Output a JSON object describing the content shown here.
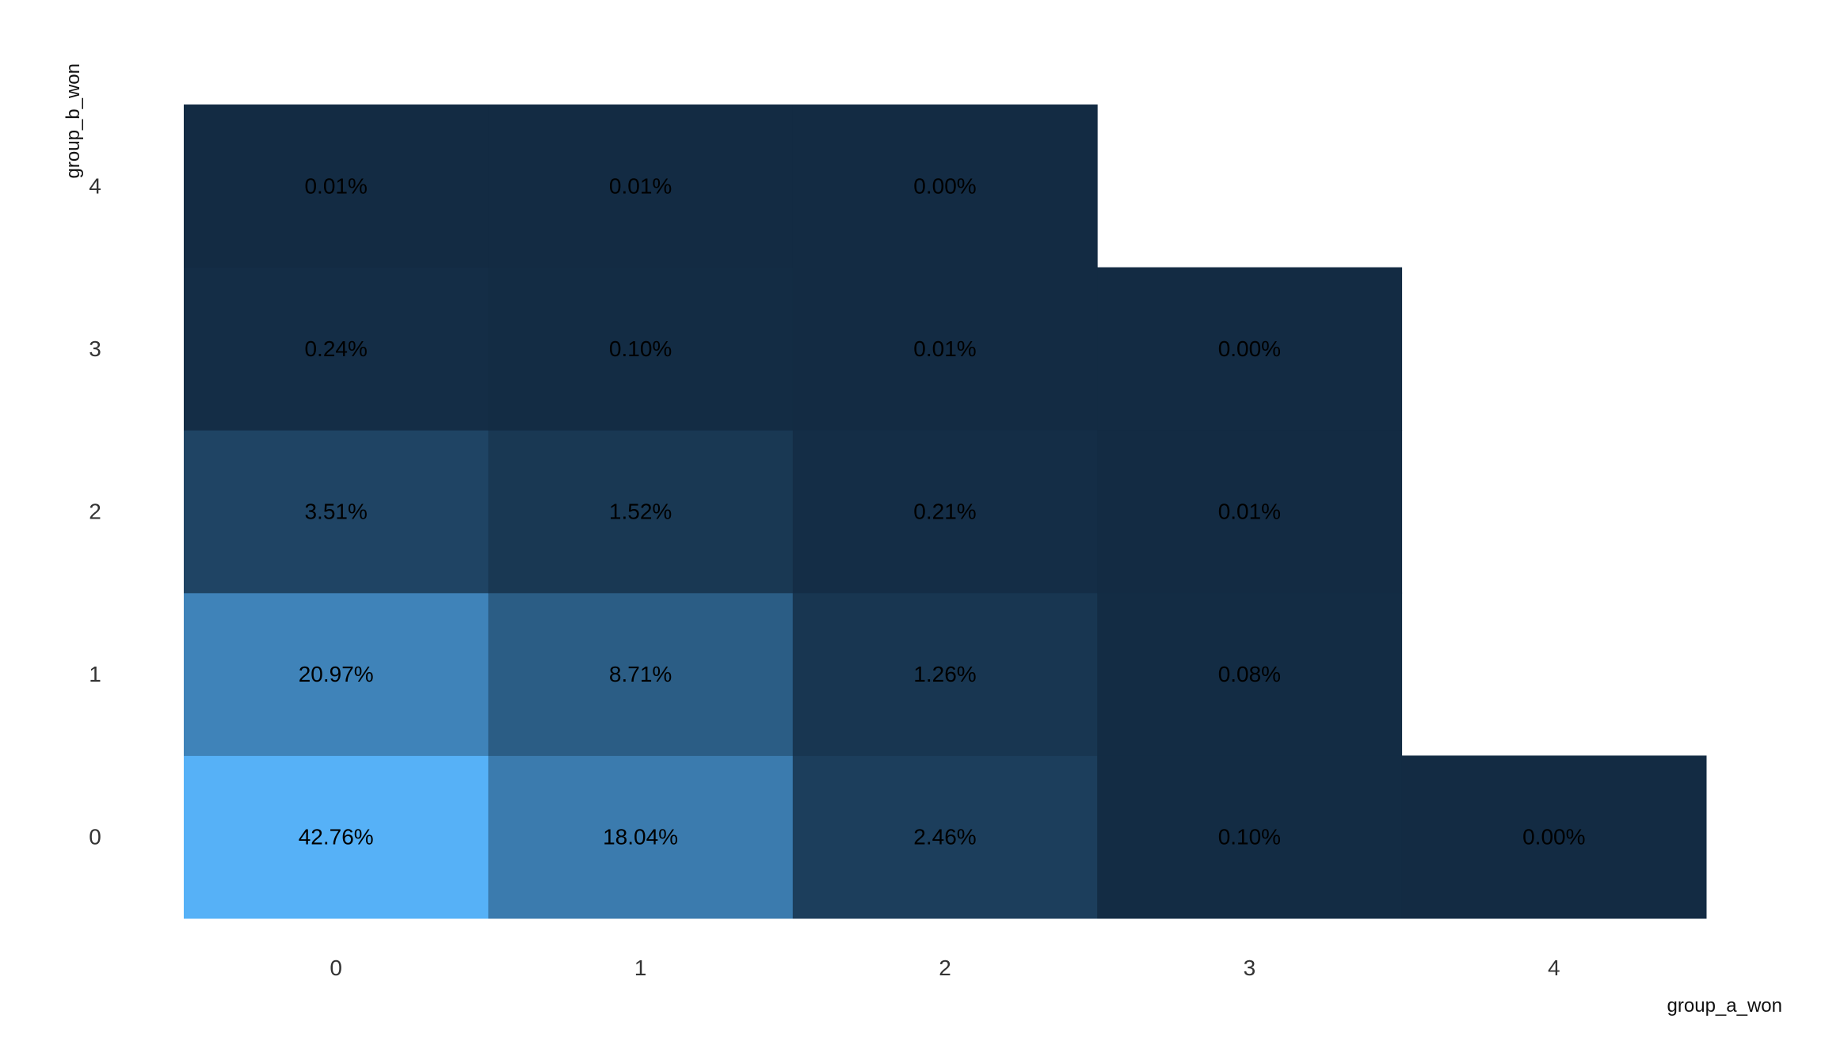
{
  "chart_data": {
    "type": "heatmap",
    "xlabel": "group_a_won",
    "ylabel": "group_b_won",
    "x_categories": [
      "0",
      "1",
      "2",
      "3",
      "4"
    ],
    "y_categories": [
      "0",
      "1",
      "2",
      "3",
      "4"
    ],
    "grid": false,
    "legend": "none",
    "color_scale": {
      "low": "#132B43",
      "high": "#56B1F7"
    },
    "cells": [
      {
        "x": "0",
        "y": "0",
        "value": 42.76,
        "label": "42.76%"
      },
      {
        "x": "1",
        "y": "0",
        "value": 18.04,
        "label": "18.04%"
      },
      {
        "x": "2",
        "y": "0",
        "value": 2.46,
        "label": "2.46%"
      },
      {
        "x": "3",
        "y": "0",
        "value": 0.1,
        "label": "0.10%"
      },
      {
        "x": "4",
        "y": "0",
        "value": 0.0,
        "label": "0.00%"
      },
      {
        "x": "0",
        "y": "1",
        "value": 20.97,
        "label": "20.97%"
      },
      {
        "x": "1",
        "y": "1",
        "value": 8.71,
        "label": "8.71%"
      },
      {
        "x": "2",
        "y": "1",
        "value": 1.26,
        "label": "1.26%"
      },
      {
        "x": "3",
        "y": "1",
        "value": 0.08,
        "label": "0.08%"
      },
      {
        "x": "0",
        "y": "2",
        "value": 3.51,
        "label": "3.51%"
      },
      {
        "x": "1",
        "y": "2",
        "value": 1.52,
        "label": "1.52%"
      },
      {
        "x": "2",
        "y": "2",
        "value": 0.21,
        "label": "0.21%"
      },
      {
        "x": "3",
        "y": "2",
        "value": 0.01,
        "label": "0.01%"
      },
      {
        "x": "0",
        "y": "3",
        "value": 0.24,
        "label": "0.24%"
      },
      {
        "x": "1",
        "y": "3",
        "value": 0.1,
        "label": "0.10%"
      },
      {
        "x": "2",
        "y": "3",
        "value": 0.01,
        "label": "0.01%"
      },
      {
        "x": "3",
        "y": "3",
        "value": 0.0,
        "label": "0.00%"
      },
      {
        "x": "0",
        "y": "4",
        "value": 0.01,
        "label": "0.01%"
      },
      {
        "x": "1",
        "y": "4",
        "value": 0.01,
        "label": "0.01%"
      },
      {
        "x": "2",
        "y": "4",
        "value": 0.0,
        "label": "0.00%"
      }
    ]
  }
}
